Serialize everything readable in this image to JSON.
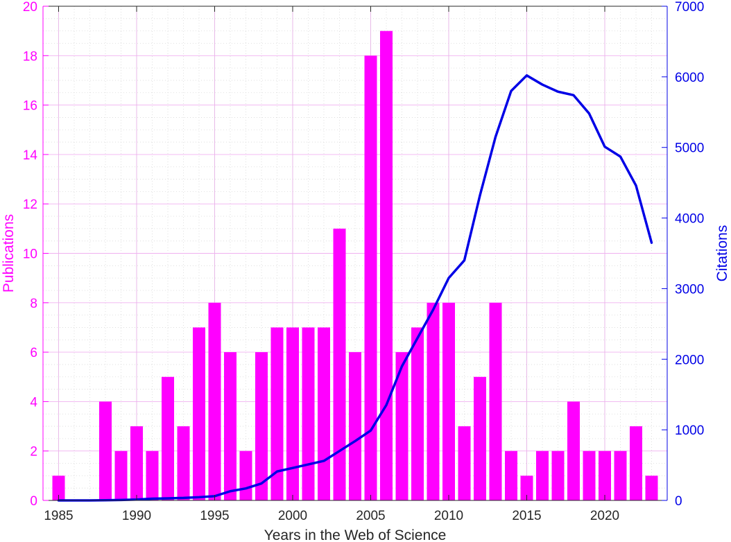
{
  "chart_data": {
    "type": "bar",
    "title": "",
    "xlabel": "Years in the Web of Science",
    "ylabel_left": "Publications",
    "ylabel_right": "Citations",
    "x": [
      1985,
      1986,
      1987,
      1988,
      1989,
      1990,
      1991,
      1992,
      1993,
      1994,
      1995,
      1996,
      1997,
      1998,
      1999,
      2000,
      2001,
      2002,
      2003,
      2004,
      2005,
      2006,
      2007,
      2008,
      2009,
      2010,
      2011,
      2012,
      2013,
      2014,
      2015,
      2016,
      2017,
      2018,
      2019,
      2020,
      2021,
      2022,
      2023
    ],
    "xlim": [
      1984,
      2024
    ],
    "xticks": [
      "1985",
      "1990",
      "1995",
      "2000",
      "2005",
      "2010",
      "2015",
      "2020"
    ],
    "ylim_left": [
      0,
      20
    ],
    "yticks_left": [
      "0",
      "2",
      "4",
      "6",
      "8",
      "10",
      "12",
      "14",
      "16",
      "18",
      "20"
    ],
    "ylim_right": [
      0,
      7000
    ],
    "yticks_right": [
      "0",
      "1000",
      "2000",
      "3000",
      "4000",
      "5000",
      "6000",
      "7000"
    ],
    "grid": true,
    "series": [
      {
        "type": "bar",
        "axis": "left",
        "color": "#ff00ff",
        "values": [
          1,
          0,
          0,
          4,
          2,
          3,
          2,
          5,
          3,
          7,
          8,
          6,
          2,
          6,
          7,
          7,
          7,
          7,
          11,
          6,
          18,
          19,
          6,
          7,
          8,
          8,
          3,
          5,
          8,
          2,
          1,
          2,
          2,
          4,
          2,
          2,
          2,
          3,
          1
        ]
      },
      {
        "type": "line",
        "axis": "right",
        "color": "#0000e6",
        "x": [
          1985,
          1986,
          1987,
          1988,
          1989,
          1990,
          1991,
          1992,
          1993,
          1994,
          1995,
          1996,
          1997,
          1998,
          1999,
          2000,
          2001,
          2002,
          2003,
          2004,
          2005,
          2006,
          2007,
          2008,
          2009,
          2010,
          2011,
          2012,
          2013,
          2014,
          2015,
          2016,
          2017,
          2018,
          2019,
          2020,
          2021,
          2022,
          2023
        ],
        "values": [
          0,
          0,
          0,
          3,
          6,
          12,
          25,
          30,
          35,
          45,
          60,
          130,
          170,
          240,
          410,
          460,
          510,
          560,
          700,
          840,
          990,
          1350,
          1900,
          2300,
          2700,
          3150,
          3400,
          4320,
          5150,
          5800,
          6020,
          5890,
          5790,
          5740,
          5480,
          5010,
          4870,
          4460,
          3650
        ]
      }
    ]
  }
}
